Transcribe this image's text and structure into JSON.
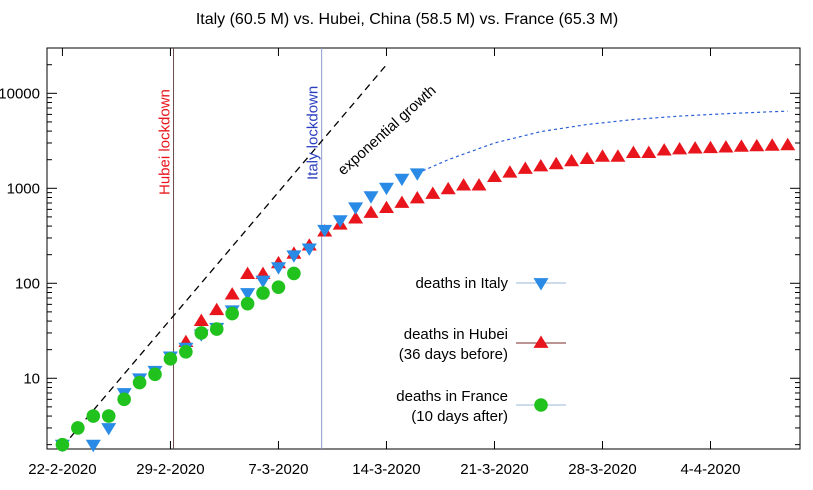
{
  "chart_data": {
    "type": "scatter",
    "title": "Italy (60.5 M) vs. Hubei, China (58.5 M) vs. France (65.3 M)",
    "xlabel": "",
    "ylabel": "",
    "y_scale": "log",
    "ylim": [
      1.8,
      30000
    ],
    "xlim_days": [
      -1,
      47.8
    ],
    "x_ticks": [
      {
        "day": 0,
        "label": "22-2-2020"
      },
      {
        "day": 7,
        "label": "29-2-2020"
      },
      {
        "day": 14,
        "label": "7-3-2020"
      },
      {
        "day": 21,
        "label": "14-3-2020"
      },
      {
        "day": 28,
        "label": "21-3-2020"
      },
      {
        "day": 35,
        "label": "28-3-2020"
      },
      {
        "day": 42,
        "label": "4-4-2020"
      }
    ],
    "y_ticks": [
      {
        "value": 10,
        "label": "10"
      },
      {
        "value": 100,
        "label": "100"
      },
      {
        "value": 1000,
        "label": "1000"
      },
      {
        "value": 10000,
        "label": "10000"
      }
    ],
    "grid": false,
    "legend_position": "right-middle",
    "series": [
      {
        "name": "deaths in Italy",
        "marker": "triangle-down",
        "color": "#2a8be6",
        "x": [
          0,
          2,
          3,
          4,
          5,
          6,
          7,
          8,
          9,
          10,
          11,
          12,
          13,
          14,
          15,
          16,
          17,
          18,
          19,
          20
        ],
        "y": [
          2,
          2,
          3,
          7,
          10,
          12,
          17,
          21,
          29,
          34,
          52,
          79,
          107,
          148,
          197,
          233,
          366,
          463,
          631,
          827
        ]
      },
      {
        "name": "deaths in Italy (continued)",
        "marker": "triangle-down",
        "color": "#2a8be6",
        "x": [
          21,
          22,
          23
        ],
        "y": [
          1016,
          1266,
          1441
        ]
      },
      {
        "name": "deaths in Hubei",
        "name_line2": "(36 days before)",
        "marker": "triangle-up",
        "color": "#e8161c",
        "x": [
          8,
          9,
          10,
          11,
          12,
          13,
          14,
          15,
          16,
          17,
          18,
          19,
          20,
          21,
          22,
          23,
          24,
          25,
          26,
          27,
          28,
          29,
          30,
          31,
          32,
          33,
          34,
          35,
          36,
          37,
          38,
          39,
          40,
          41,
          42,
          43,
          44,
          45,
          46,
          47
        ],
        "y": [
          24,
          40,
          52,
          76,
          125,
          125,
          162,
          204,
          249,
          350,
          414,
          479,
          549,
          618,
          699,
          780,
          871,
          974,
          1068,
          1068,
          1310,
          1457,
          1596,
          1696,
          1789,
          1921,
          2029,
          2144,
          2144,
          2346,
          2346,
          2495,
          2563,
          2615,
          2641,
          2682,
          2727,
          2761,
          2803,
          2835
        ]
      },
      {
        "name": "deaths in France",
        "name_line2": "(10 days after)",
        "marker": "circle",
        "color": "#21c21e",
        "x": [
          0,
          1,
          2,
          3,
          4,
          5,
          6,
          7,
          8,
          9,
          10,
          11,
          12,
          13,
          14,
          15
        ],
        "y": [
          2,
          3,
          4,
          4,
          6,
          9,
          11,
          16,
          19,
          30,
          33,
          48,
          61,
          79,
          91,
          127
        ]
      }
    ],
    "lines": [
      {
        "name": "exponential growth",
        "style": "dashed",
        "color": "#000000",
        "x": [
          0,
          21
        ],
        "y": [
          1.9,
          20000
        ]
      },
      {
        "name": "italy projection",
        "style": "dotted",
        "color": "#2a5fd6",
        "x": [
          23,
          25,
          28,
          31,
          34,
          37,
          40,
          43,
          46,
          47
        ],
        "y": [
          1441,
          2000,
          3000,
          3950,
          4700,
          5300,
          5750,
          6100,
          6400,
          6480
        ]
      }
    ],
    "annotations": [
      {
        "text": "Hubei lockdown",
        "x": 7.2,
        "color": "#e8161c"
      },
      {
        "text": "Italy lockdown",
        "x": 16.8,
        "color": "#2a3fbf"
      },
      {
        "text": "exponential growth",
        "x": 18.2,
        "y": 1350,
        "color": "#000000"
      }
    ],
    "legend": [
      {
        "line1": "deaths in Italy",
        "line2": ""
      },
      {
        "line1": "deaths in Hubei",
        "line2": "(36 days before)"
      },
      {
        "line1": "deaths in France",
        "line2": "(10 days after)"
      }
    ]
  }
}
